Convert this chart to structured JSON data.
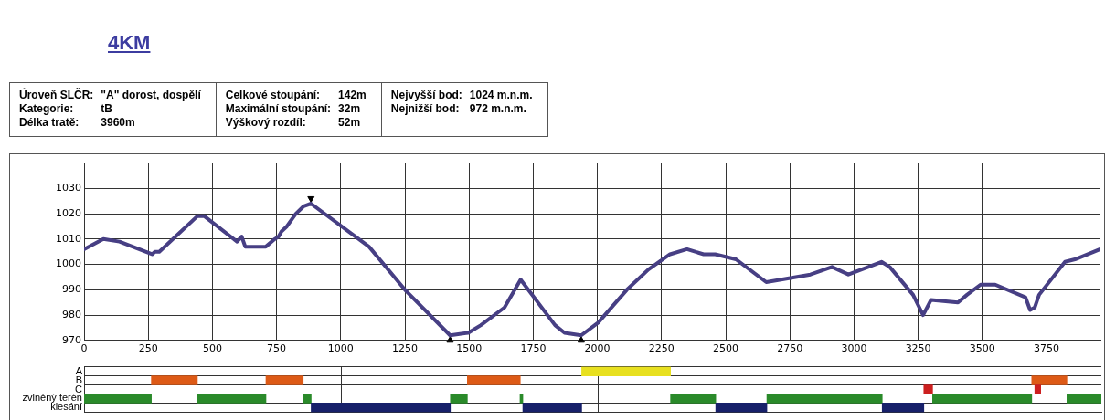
{
  "chart_data": [
    {
      "type": "line",
      "title": "4KM",
      "annotations": [
        "Úroveň SLČR: \"A\" dorost, dospělí",
        "Kategorie: tB",
        "Délka tratě: 3960m",
        "Celkové stoupání: 142m",
        "Maximální stoupání: 32m",
        "Výškový rozdíl: 52m",
        "Nejvyšší bod: 1024 m.n.m.",
        "Nejnižší bod: 972 m.n.m."
      ],
      "xlim": [
        0,
        3960
      ],
      "xticks": [
        0,
        250,
        500,
        750,
        1000,
        1250,
        1500,
        1750,
        2000,
        2250,
        2500,
        2750,
        3000,
        3250,
        3500,
        3750
      ],
      "ylim": [
        970,
        1040
      ],
      "yticks": [
        970,
        980,
        990,
        1000,
        1010,
        1020,
        1030
      ],
      "grid": true,
      "legend": false,
      "marker": "none",
      "line_style": "solid",
      "series": [
        {
          "type": "line",
          "color": "#473f84",
          "x": [
            0,
            75,
            138,
            265,
            276,
            293,
            441,
            469,
            596,
            614,
            628,
            708,
            743,
            758,
            769,
            790,
            825,
            856,
            884,
            1110,
            1250,
            1426,
            1497,
            1546,
            1638,
            1701,
            1835,
            1872,
            1937,
            2003,
            2115,
            2199,
            2283,
            2349,
            2381,
            2414,
            2459,
            2540,
            2658,
            2830,
            2914,
            2978,
            3107,
            3139,
            3230,
            3269,
            3300,
            3405,
            3440,
            3493,
            3550,
            3668,
            3686,
            3704,
            3721,
            3822,
            3861,
            3959
          ],
          "values": [
            1006,
            1010,
            1009,
            1004,
            1005,
            1005,
            1019,
            1019,
            1009,
            1011,
            1007,
            1007,
            1010,
            1011,
            1013,
            1015,
            1020,
            1023,
            1024,
            1007,
            990,
            972,
            973,
            976,
            983,
            994,
            976,
            973,
            972,
            977,
            990,
            998,
            1004,
            1006,
            1005,
            1004,
            1004,
            1002,
            993,
            996,
            999,
            996,
            1001,
            999,
            988,
            980,
            986,
            985,
            988,
            992,
            992,
            987,
            982,
            983,
            988,
            1001,
            1002,
            1006
          ]
        },
        {
          "type": "scatter",
          "color": "#000000",
          "marker": "triangle",
          "x": [
            884
          ],
          "values": [
            1026
          ]
        },
        {
          "type": "scatter",
          "color": "#000000",
          "marker": "triangle",
          "x": [
            1426,
            1937
          ],
          "values": [
            970,
            970
          ]
        }
      ]
    },
    {
      "type": "bar",
      "orientation": "horizontal",
      "categories": [
        "A",
        "B",
        "C",
        "zvlněný terén",
        "klesání"
      ],
      "xlim": [
        0,
        3960
      ],
      "xticks": [
        1000,
        2000,
        3000
      ],
      "tick_labels": "y",
      "grid": true,
      "legend": false,
      "series": [
        {
          "colors": [
            "#e8e020",
            "#dd5a16",
            "#cc1f1f",
            "#2a8a2a",
            "#17206a"
          ],
          "base": [
            1937,
            262,
            3269,
            0,
            884
          ],
          "values": [
            346,
            179,
            34,
            262,
            542
          ]
        },
        {
          "colors": [
            "#e8e020",
            "#dd5a16",
            "#cc1f1f",
            "#2a8a2a",
            "#17206a"
          ],
          "base": [
            null,
            708,
            3701,
            441,
            1708
          ],
          "values": [
            null,
            145,
            23,
            267,
            229
          ]
        },
        {
          "colors": [
            "#e8e020",
            "#dd5a16",
            "#cc1f1f",
            "#2a8a2a",
            "#17206a"
          ],
          "base": [
            null,
            1492,
            null,
            853,
            2459
          ],
          "values": [
            null,
            206,
            null,
            31,
            199
          ]
        },
        {
          "colors": [
            "#e8e020",
            "#dd5a16",
            "#cc1f1f",
            "#2a8a2a",
            "#17206a"
          ],
          "base": [
            null,
            3689,
            null,
            1426,
            3107
          ],
          "values": [
            null,
            137,
            null,
            66,
            162
          ]
        },
        {
          "colors": [
            "#e8e020",
            "#dd5a16",
            "#cc1f1f",
            "#2a8a2a",
            "#17206a"
          ],
          "base": [
            null,
            null,
            null,
            1697,
            null
          ],
          "values": [
            null,
            null,
            null,
            11,
            null
          ]
        },
        {
          "colors": [
            "#e8e020",
            "#dd5a16",
            "#cc1f1f",
            "#2a8a2a",
            "#17206a"
          ],
          "base": [
            null,
            null,
            null,
            2283,
            null
          ],
          "values": [
            null,
            null,
            null,
            176,
            null
          ]
        },
        {
          "colors": [
            "#e8e020",
            "#dd5a16",
            "#cc1f1f",
            "#2a8a2a",
            "#17206a"
          ],
          "base": [
            null,
            null,
            null,
            2658,
            null
          ],
          "values": [
            null,
            null,
            null,
            449,
            null
          ]
        },
        {
          "colors": [
            "#e8e020",
            "#dd5a16",
            "#cc1f1f",
            "#2a8a2a",
            "#17206a"
          ],
          "base": [
            null,
            null,
            null,
            3303,
            null
          ],
          "values": [
            null,
            null,
            null,
            386,
            null
          ]
        },
        {
          "colors": [
            "#e8e020",
            "#dd5a16",
            "#cc1f1f",
            "#2a8a2a",
            "#17206a"
          ],
          "base": [
            null,
            null,
            null,
            3826,
            null
          ],
          "values": [
            null,
            null,
            null,
            133,
            null
          ]
        }
      ]
    }
  ]
}
